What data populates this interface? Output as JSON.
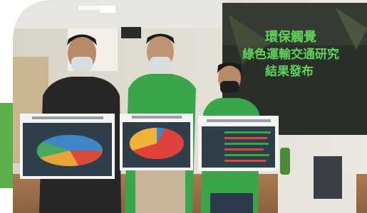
{
  "screen": {
    "lines": [
      "環保觸覺",
      "綠色運輸交通研究",
      "結果發布"
    ]
  }
}
